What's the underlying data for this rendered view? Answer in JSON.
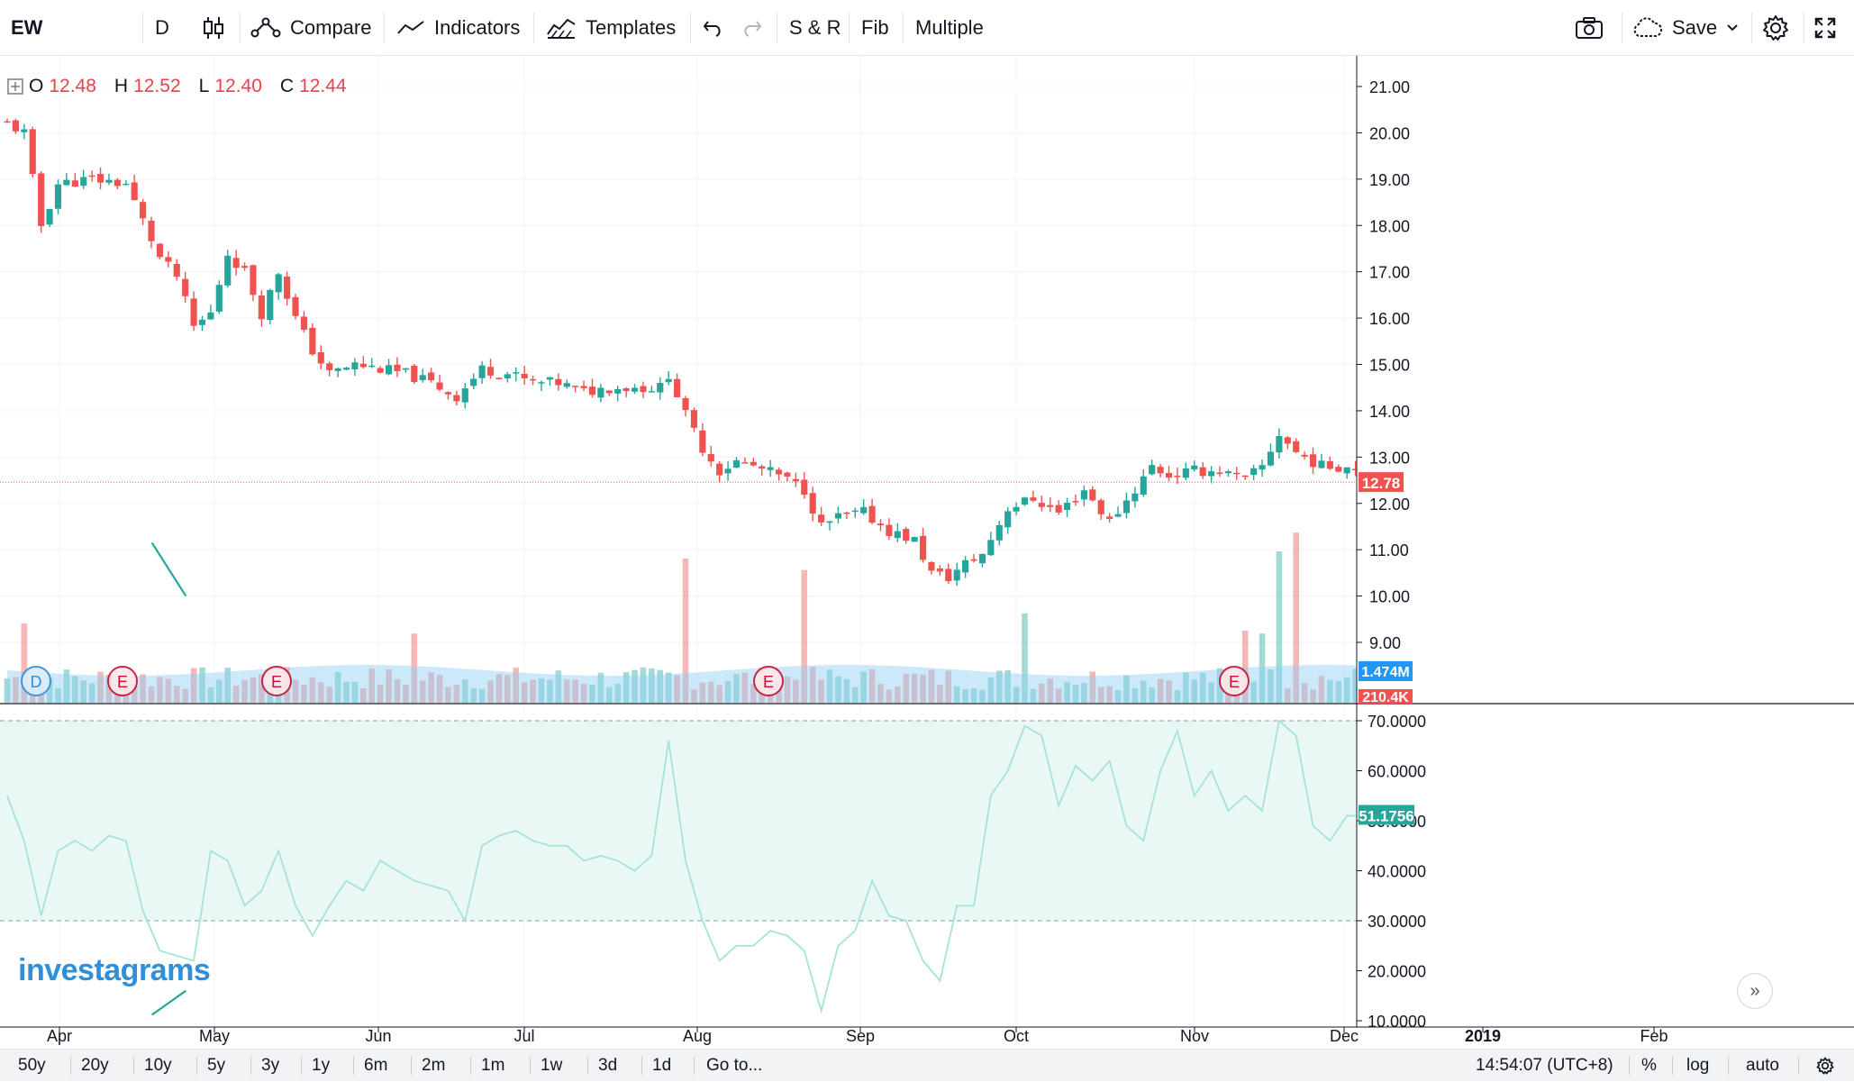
{
  "toolbar": {
    "symbol": "EW",
    "interval": "D",
    "compare": "Compare",
    "indicators": "Indicators",
    "templates": "Templates",
    "sr": "S & R",
    "fib": "Fib",
    "multiple": "Multiple",
    "save": "Save",
    "icons": [
      "candles-icon",
      "compare-icon",
      "indicators-icon",
      "templates-icon",
      "undo-icon",
      "redo-icon",
      "camera-icon",
      "cloud-icon",
      "chevron-down-icon",
      "gear-icon",
      "fullscreen-icon"
    ]
  },
  "ohlc": {
    "o_label": "O",
    "o": "12.48",
    "h_label": "H",
    "h": "12.52",
    "l_label": "L",
    "l": "12.40",
    "c_label": "C",
    "c": "12.44"
  },
  "branding": {
    "logo": "investagrams"
  },
  "colors": {
    "up": "#26a69a",
    "down": "#ef5350",
    "rsi": "#a6e3d7",
    "rsi_band": "#e9f8f5",
    "volume_ma": "#8ecff3"
  },
  "chart_data": [
    {
      "type": "candlestick",
      "y_ticks": [
        "21.00",
        "20.00",
        "19.00",
        "18.00",
        "17.00",
        "16.00",
        "15.00",
        "14.00",
        "13.00",
        "12.00",
        "11.00",
        "10.00",
        "9.00"
      ],
      "ylim": [
        8.2,
        21.4
      ],
      "x_labels": [
        "Apr",
        "May",
        "Jun",
        "Jul",
        "Aug",
        "Sep",
        "Oct",
        "Nov",
        "Dec",
        "2019",
        "Feb"
      ],
      "last_price": "12.78",
      "trend_line": {
        "from": [
          0.112,
          11.15
        ],
        "to": [
          0.137,
          10.0
        ]
      },
      "price_path": [
        [
          0,
          20.2
        ],
        [
          2,
          20.0
        ],
        [
          4,
          18.0
        ],
        [
          6,
          18.9
        ],
        [
          10,
          19.0
        ],
        [
          14,
          18.9
        ],
        [
          16,
          18.1
        ],
        [
          18,
          17.3
        ],
        [
          20,
          16.9
        ],
        [
          22,
          15.8
        ],
        [
          24,
          16.1
        ],
        [
          26,
          17.4
        ],
        [
          28,
          17.0
        ],
        [
          30,
          16.1
        ],
        [
          32,
          17.0
        ],
        [
          34,
          16.0
        ],
        [
          36,
          15.3
        ],
        [
          38,
          14.8
        ],
        [
          41,
          15.0
        ],
        [
          44,
          14.9
        ],
        [
          47,
          14.8
        ],
        [
          50,
          14.6
        ],
        [
          53,
          14.3
        ],
        [
          56,
          14.9
        ],
        [
          59,
          14.8
        ],
        [
          62,
          14.6
        ],
        [
          65,
          14.6
        ],
        [
          68,
          14.4
        ],
        [
          71,
          14.5
        ],
        [
          74,
          14.5
        ],
        [
          77,
          14.5
        ],
        [
          78,
          14.8
        ],
        [
          80,
          13.9
        ],
        [
          82,
          13.2
        ],
        [
          84,
          12.7
        ],
        [
          86,
          12.9
        ],
        [
          88,
          12.8
        ],
        [
          91,
          12.6
        ],
        [
          94,
          12.3
        ],
        [
          96,
          11.5
        ],
        [
          98,
          11.7
        ],
        [
          101,
          11.8
        ],
        [
          104,
          11.4
        ],
        [
          107,
          11.2
        ],
        [
          109,
          10.5
        ],
        [
          111,
          10.4
        ],
        [
          113,
          10.7
        ],
        [
          115,
          10.9
        ],
        [
          118,
          11.9
        ],
        [
          121,
          12.1
        ],
        [
          124,
          11.8
        ],
        [
          127,
          12.3
        ],
        [
          130,
          11.6
        ],
        [
          133,
          12.3
        ],
        [
          135,
          12.8
        ],
        [
          137,
          12.6
        ],
        [
          140,
          12.7
        ],
        [
          143,
          12.7
        ],
        [
          146,
          12.5
        ],
        [
          148,
          12.8
        ],
        [
          150,
          13.5
        ],
        [
          152,
          13.1
        ],
        [
          155,
          12.8
        ],
        [
          158,
          12.8
        ]
      ]
    },
    {
      "type": "bar",
      "name_series": "volume",
      "labels": [
        "1.474M",
        "210.4K"
      ],
      "earnings_markers": [
        "D",
        "E",
        "E",
        "E",
        "E"
      ]
    },
    {
      "type": "line",
      "y_ticks": [
        "70.0000",
        "60.0000",
        "50.0000",
        "40.0000",
        "30.0000",
        "20.0000",
        "10.0000"
      ],
      "ylim": [
        9.5,
        71.5
      ],
      "band": [
        30,
        70
      ],
      "last_value": "51.1756",
      "trend_line": {
        "from": [
          0.112,
          11.2
        ],
        "to": [
          0.137,
          16.0
        ]
      },
      "rsi_path": [
        [
          0,
          55
        ],
        [
          2,
          46
        ],
        [
          4,
          31
        ],
        [
          6,
          44
        ],
        [
          8,
          46
        ],
        [
          10,
          44
        ],
        [
          12,
          47
        ],
        [
          14,
          46
        ],
        [
          16,
          32
        ],
        [
          18,
          24
        ],
        [
          20,
          23
        ],
        [
          22,
          22
        ],
        [
          24,
          44
        ],
        [
          26,
          42
        ],
        [
          28,
          33
        ],
        [
          30,
          36
        ],
        [
          32,
          44
        ],
        [
          34,
          33
        ],
        [
          36,
          27
        ],
        [
          38,
          33
        ],
        [
          40,
          38
        ],
        [
          42,
          36
        ],
        [
          44,
          42
        ],
        [
          46,
          40
        ],
        [
          48,
          38
        ],
        [
          50,
          37
        ],
        [
          52,
          36
        ],
        [
          54,
          30
        ],
        [
          56,
          45
        ],
        [
          58,
          47
        ],
        [
          60,
          48
        ],
        [
          62,
          46
        ],
        [
          64,
          45
        ],
        [
          66,
          45
        ],
        [
          68,
          42
        ],
        [
          70,
          43
        ],
        [
          72,
          42
        ],
        [
          74,
          40
        ],
        [
          76,
          43
        ],
        [
          78,
          66
        ],
        [
          80,
          42
        ],
        [
          82,
          30
        ],
        [
          84,
          22
        ],
        [
          86,
          25
        ],
        [
          88,
          25
        ],
        [
          90,
          28
        ],
        [
          92,
          27
        ],
        [
          94,
          24
        ],
        [
          96,
          12
        ],
        [
          98,
          25
        ],
        [
          100,
          28
        ],
        [
          102,
          38
        ],
        [
          104,
          31
        ],
        [
          106,
          30
        ],
        [
          108,
          22
        ],
        [
          110,
          18
        ],
        [
          112,
          33
        ],
        [
          114,
          33
        ],
        [
          116,
          55
        ],
        [
          118,
          60
        ],
        [
          120,
          69
        ],
        [
          122,
          67
        ],
        [
          124,
          53
        ],
        [
          126,
          61
        ],
        [
          128,
          58
        ],
        [
          130,
          62
        ],
        [
          132,
          49
        ],
        [
          134,
          46
        ],
        [
          136,
          60
        ],
        [
          138,
          68
        ],
        [
          140,
          55
        ],
        [
          142,
          60
        ],
        [
          144,
          52
        ],
        [
          146,
          55
        ],
        [
          148,
          52
        ],
        [
          150,
          70
        ],
        [
          152,
          67
        ],
        [
          154,
          49
        ],
        [
          156,
          46
        ],
        [
          158,
          51
        ]
      ]
    }
  ],
  "bottombar": {
    "ranges": [
      "50y",
      "20y",
      "10y",
      "5y",
      "3y",
      "1y",
      "6m",
      "2m",
      "1m",
      "1w",
      "3d",
      "1d"
    ],
    "goto": "Go to...",
    "time": "14:54:07 (UTC+8)",
    "pct": "%",
    "log": "log",
    "auto": "auto"
  }
}
